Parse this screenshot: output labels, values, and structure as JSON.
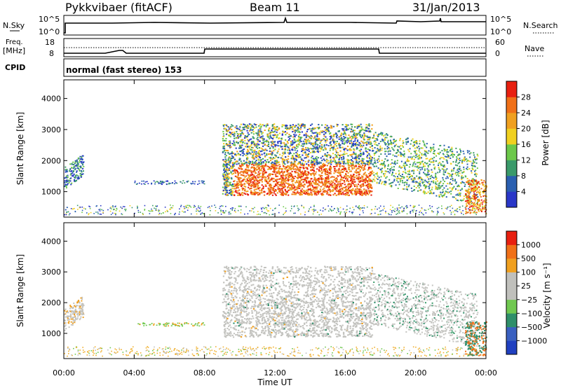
{
  "header": {
    "station": "Pykkvibaer (fitACF)",
    "beam": "Beam 11",
    "date": "31/Jan/2013"
  },
  "status_panel": {
    "left_labels": {
      "nsky": "N.Sky",
      "freq": "Freq.",
      "freq_unit": "[MHz]",
      "cpid": "CPID"
    },
    "right_labels": {
      "nsearch": "N.Search",
      "nave": "Nave"
    },
    "nsky_ticks": [
      "10^5",
      "10^0"
    ],
    "nsearch_ticks": [
      "10^5",
      "10^0"
    ],
    "freq_ticks": [
      "18",
      "8"
    ],
    "nave_ticks": [
      "60",
      "0"
    ],
    "cpid_text": "normal (fast stereo) 153"
  },
  "chart_data": [
    {
      "type": "heatmap",
      "name": "power",
      "ylabel": "Slant Range [km]",
      "xlabel": "",
      "x_ticks": [],
      "y_ticks": [
        "1000",
        "2000",
        "3000",
        "4000"
      ],
      "xlim_hours": [
        0,
        24
      ],
      "ylim_km": [
        180,
        4600
      ],
      "colorbar": {
        "label": "Power [dB]",
        "ticks": [
          "28",
          "24",
          "20",
          "16",
          "12",
          "8",
          "4"
        ],
        "colors": [
          "#2a37c8",
          "#2a5fb0",
          "#3a9a6a",
          "#6cc84a",
          "#f0d020",
          "#f0a020",
          "#f07018",
          "#e82010"
        ]
      }
    },
    {
      "type": "heatmap",
      "name": "velocity",
      "ylabel": "Slant Range [km]",
      "xlabel": "Time UT",
      "x_ticks": [
        "00:00",
        "04:00",
        "08:00",
        "12:00",
        "16:00",
        "20:00",
        "00:00"
      ],
      "y_ticks": [
        "1000",
        "2000",
        "3000",
        "4000"
      ],
      "xlim_hours": [
        0,
        24
      ],
      "ylim_km": [
        180,
        4600
      ],
      "colorbar": {
        "label": "Velocity [m s⁻¹]",
        "ticks": [
          "1000",
          "500",
          "100",
          "25",
          "−25",
          "−100",
          "−500",
          "−1000"
        ],
        "colors": [
          "#2040c0",
          "#3a60c0",
          "#2f8f6a",
          "#70c850",
          "#c0c0bc",
          "#c0c0bc",
          "#f0a020",
          "#f07018",
          "#e82010"
        ]
      }
    }
  ]
}
